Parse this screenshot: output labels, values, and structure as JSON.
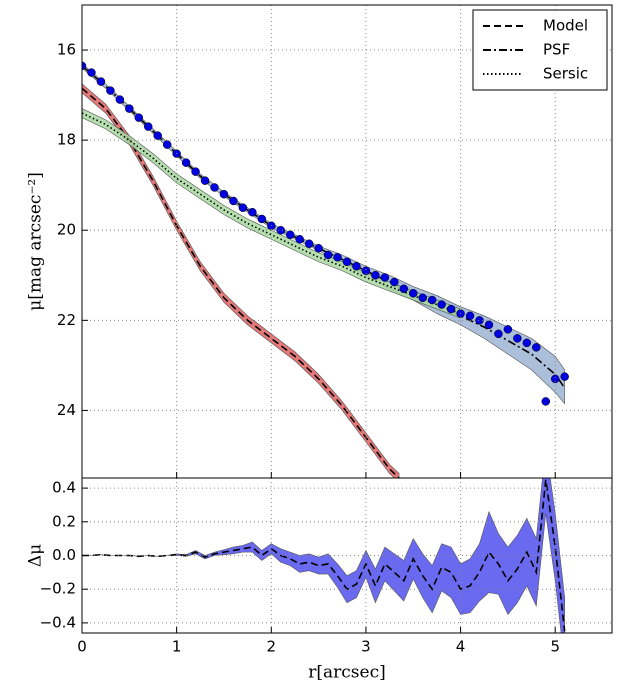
{
  "chart_data": [
    {
      "type": "line",
      "ylabel": "μ[mag arcsec⁻²]",
      "xlim": [
        0,
        5.6
      ],
      "ylim": [
        15,
        25.5
      ],
      "y_inverted": true,
      "xticks": [
        0,
        1,
        2,
        3,
        4,
        5
      ],
      "yticks": [
        16,
        18,
        20,
        22,
        24
      ],
      "grid": true,
      "legend": "upper right",
      "series": [
        {
          "name": "Model",
          "color": "#000000",
          "linestyle": "dashed",
          "band_color": "#e06060",
          "x": [
            0,
            0.25,
            0.5,
            0.75,
            1.0,
            1.25,
            1.5,
            1.75,
            2.0,
            2.25,
            2.5,
            2.75,
            3.0,
            3.25,
            3.35
          ],
          "values": [
            16.85,
            17.3,
            18.0,
            18.9,
            19.9,
            20.8,
            21.5,
            22.0,
            22.4,
            22.8,
            23.3,
            23.9,
            24.6,
            25.3,
            25.5
          ],
          "band_lower": [
            16.75,
            17.2,
            17.9,
            18.8,
            19.8,
            20.7,
            21.4,
            21.9,
            22.3,
            22.7,
            23.2,
            23.8,
            24.5,
            25.2,
            25.4
          ],
          "band_upper": [
            16.95,
            17.4,
            18.1,
            19.0,
            20.0,
            20.9,
            21.6,
            22.1,
            22.5,
            22.9,
            23.4,
            24.0,
            24.7,
            25.4,
            25.6
          ]
        },
        {
          "name": "PSF",
          "color": "#000000",
          "linestyle": "dashdot",
          "band_color": "#9db4d4",
          "x": [
            0,
            0.25,
            0.5,
            0.75,
            1.0,
            1.25,
            1.5,
            1.75,
            2.0,
            2.25,
            2.5,
            2.75,
            3.0,
            3.25,
            3.5,
            3.75,
            4.0,
            4.25,
            4.5,
            4.75,
            5.0,
            5.1
          ],
          "values": [
            16.35,
            16.8,
            17.3,
            17.8,
            18.3,
            18.8,
            19.2,
            19.55,
            19.9,
            20.15,
            20.4,
            20.65,
            20.9,
            21.15,
            21.4,
            21.65,
            21.9,
            22.15,
            22.45,
            22.75,
            23.2,
            23.5
          ],
          "band_lower": [
            16.3,
            16.75,
            17.25,
            17.75,
            18.25,
            18.75,
            19.15,
            19.5,
            19.85,
            20.1,
            20.35,
            20.55,
            20.8,
            21.0,
            21.25,
            21.45,
            21.7,
            21.9,
            22.15,
            22.4,
            22.8,
            23.1
          ],
          "band_upper": [
            16.4,
            16.85,
            17.35,
            17.85,
            18.35,
            18.85,
            19.25,
            19.6,
            19.95,
            20.2,
            20.45,
            20.75,
            21.0,
            21.3,
            21.55,
            21.85,
            22.1,
            22.4,
            22.75,
            23.1,
            23.6,
            23.85
          ]
        },
        {
          "name": "Sersic",
          "color": "#000000",
          "linestyle": "dotted",
          "band_color": "#a8d8a0",
          "x": [
            0,
            0.25,
            0.5,
            0.75,
            1.0,
            1.25,
            1.5,
            1.75,
            2.0,
            2.25,
            2.5,
            2.75,
            3.0,
            3.25,
            3.5,
            3.75,
            4.0
          ],
          "values": [
            17.4,
            17.65,
            18.0,
            18.4,
            18.85,
            19.2,
            19.55,
            19.85,
            20.1,
            20.35,
            20.6,
            20.8,
            21.05,
            21.25,
            21.45,
            21.65,
            21.85
          ],
          "band_lower": [
            17.3,
            17.55,
            17.9,
            18.3,
            18.75,
            19.1,
            19.45,
            19.75,
            20.0,
            20.25,
            20.5,
            20.7,
            20.95,
            21.15,
            21.35,
            21.55,
            21.75
          ],
          "band_upper": [
            17.5,
            17.75,
            18.1,
            18.5,
            18.95,
            19.3,
            19.65,
            19.95,
            20.2,
            20.45,
            20.7,
            20.9,
            21.15,
            21.35,
            21.55,
            21.75,
            21.95
          ]
        }
      ],
      "points": {
        "color": "#0000e0",
        "x": [
          0,
          0.1,
          0.2,
          0.3,
          0.4,
          0.5,
          0.6,
          0.7,
          0.8,
          0.9,
          1.0,
          1.1,
          1.2,
          1.3,
          1.4,
          1.5,
          1.6,
          1.7,
          1.8,
          1.9,
          2.0,
          2.1,
          2.2,
          2.3,
          2.4,
          2.5,
          2.6,
          2.7,
          2.8,
          2.9,
          3.0,
          3.1,
          3.2,
          3.3,
          3.4,
          3.5,
          3.6,
          3.7,
          3.8,
          3.9,
          4.0,
          4.1,
          4.2,
          4.3,
          4.4,
          4.5,
          4.6,
          4.7,
          4.8,
          4.9,
          5.0,
          5.1
        ],
        "values": [
          16.35,
          16.5,
          16.7,
          16.9,
          17.1,
          17.3,
          17.5,
          17.7,
          17.9,
          18.1,
          18.3,
          18.5,
          18.7,
          18.9,
          19.05,
          19.2,
          19.35,
          19.5,
          19.6,
          19.75,
          19.9,
          20.0,
          20.1,
          20.2,
          20.3,
          20.4,
          20.55,
          20.6,
          20.7,
          20.8,
          20.9,
          21.0,
          21.05,
          21.15,
          21.3,
          21.4,
          21.5,
          21.55,
          21.65,
          21.75,
          21.85,
          21.9,
          22.0,
          22.1,
          22.3,
          22.2,
          22.4,
          22.5,
          22.6,
          23.8,
          23.3,
          23.25
        ]
      }
    },
    {
      "type": "line",
      "ylabel": "Δμ",
      "xlabel": "r[arcsec]",
      "xlim": [
        0,
        5.6
      ],
      "ylim": [
        -0.46,
        0.46
      ],
      "xticks": [
        0,
        1,
        2,
        3,
        4,
        5
      ],
      "yticks": [
        0.4,
        0.2,
        {
          "value": 0.0,
          "label": "0.0"
        },
        {
          "value": -0.2,
          "label": "−0.2"
        },
        {
          "value": -0.4,
          "label": "−0.4"
        }
      ],
      "grid": true,
      "series": [
        {
          "color": "#000000",
          "linestyle": "dashed",
          "band_color": "#6a6af0",
          "x": [
            0,
            0.1,
            0.2,
            0.3,
            0.4,
            0.5,
            0.6,
            0.7,
            0.8,
            0.9,
            1.0,
            1.1,
            1.2,
            1.3,
            1.4,
            1.5,
            1.6,
            1.7,
            1.8,
            1.9,
            2.0,
            2.1,
            2.2,
            2.3,
            2.4,
            2.5,
            2.6,
            2.7,
            2.8,
            2.9,
            3.0,
            3.1,
            3.2,
            3.3,
            3.4,
            3.5,
            3.6,
            3.7,
            3.8,
            3.9,
            4.0,
            4.1,
            4.2,
            4.3,
            4.4,
            4.5,
            4.6,
            4.7,
            4.8,
            4.9,
            5.0,
            5.1
          ],
          "values": [
            0,
            0,
            0.005,
            0,
            0,
            0,
            -0.005,
            0,
            -0.005,
            0,
            0.005,
            0,
            0.02,
            -0.01,
            0.01,
            0.02,
            0.03,
            0.04,
            0.05,
            0.0,
            0.04,
            0.0,
            -0.02,
            -0.05,
            -0.04,
            -0.06,
            -0.05,
            -0.12,
            -0.2,
            -0.17,
            -0.05,
            -0.18,
            -0.05,
            -0.1,
            -0.15,
            -0.02,
            -0.12,
            -0.2,
            -0.07,
            -0.1,
            -0.2,
            -0.18,
            -0.1,
            0.02,
            -0.05,
            -0.15,
            -0.08,
            0.02,
            -0.1,
            0.45,
            0.05,
            -0.45
          ],
          "error": [
            0,
            0,
            0,
            0,
            0,
            0,
            0,
            0,
            0,
            0,
            0.005,
            0.005,
            0.01,
            0.01,
            0.01,
            0.015,
            0.02,
            0.02,
            0.03,
            0.03,
            0.03,
            0.04,
            0.04,
            0.05,
            0.05,
            0.05,
            0.06,
            0.07,
            0.08,
            0.08,
            0.08,
            0.1,
            0.1,
            0.11,
            0.12,
            0.12,
            0.13,
            0.14,
            0.14,
            0.15,
            0.15,
            0.16,
            0.17,
            0.24,
            0.18,
            0.2,
            0.2,
            0.2,
            0.2,
            0.2,
            0.2,
            0.2
          ]
        }
      ]
    }
  ]
}
